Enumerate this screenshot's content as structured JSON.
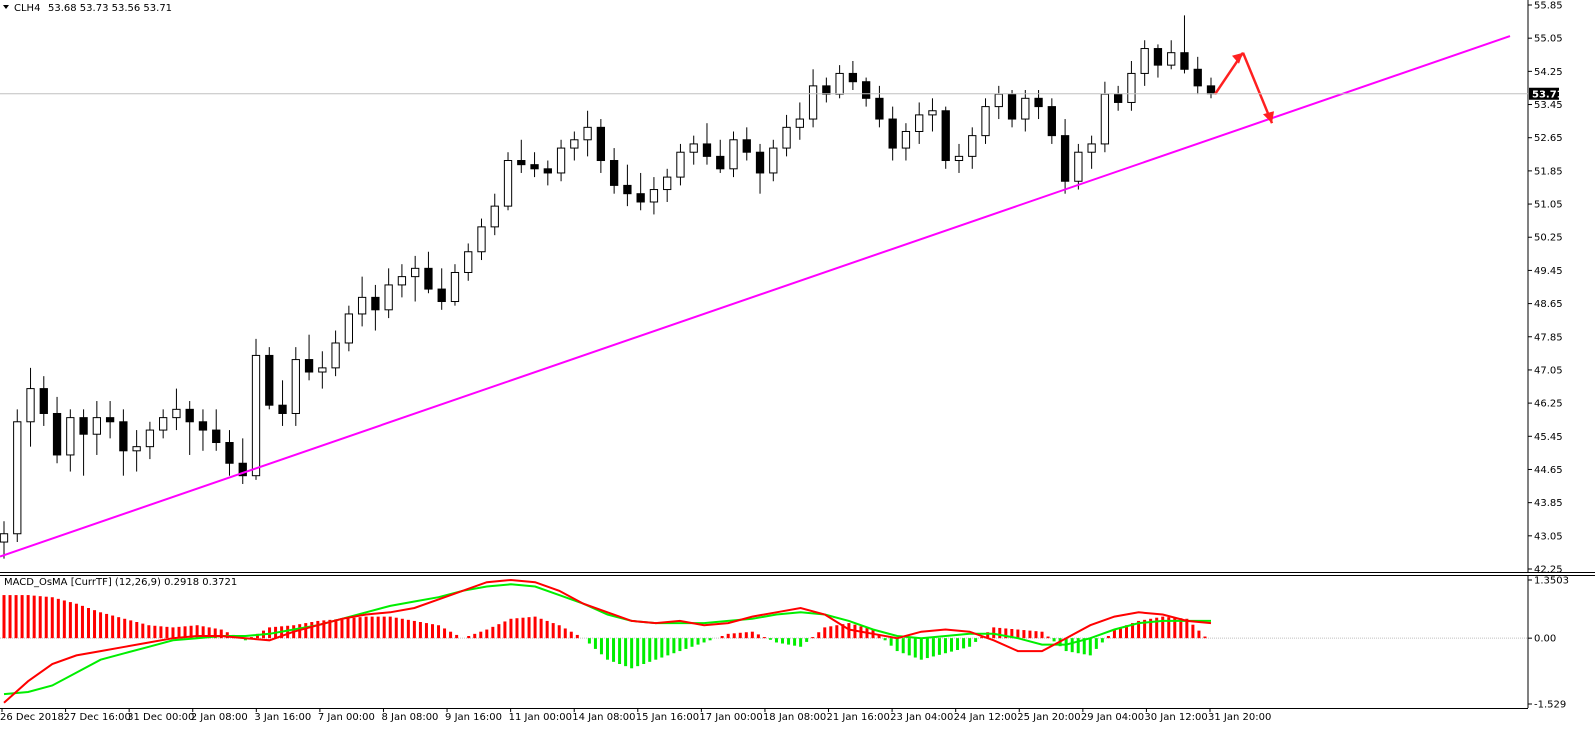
{
  "header": {
    "symbol": "CLH4",
    "ohlc": "53.68 53.73 53.56 53.71",
    "indicator": "MACD_OsMA [CurrTF] (12,26,9) 0.2918 0.3721"
  },
  "colors": {
    "background": "#ffffff",
    "candle": "#000000",
    "trendline": "#ff00ff",
    "arrows": "#ff2020",
    "macd_line": "#ff0000",
    "signal_line": "#00ee00",
    "hist_pos": "#ff0000",
    "hist_neg": "#00ee00",
    "grid_line": "#c0c0c0"
  },
  "chart_data": [
    {
      "type": "candlestick",
      "symbol": "CLH4",
      "ylim": [
        42.25,
        55.85
      ],
      "y_ticks": [
        "55.85",
        "55.05",
        "54.25",
        "53.45",
        "52.65",
        "51.85",
        "51.05",
        "50.25",
        "49.45",
        "48.65",
        "47.85",
        "47.05",
        "46.25",
        "45.45",
        "44.65",
        "43.85",
        "43.05",
        "42.25"
      ],
      "x_ticks": [
        "26 Dec 2018",
        "27 Dec 16:00",
        "31 Dec 00:00",
        "2 Jan 08:00",
        "3 Jan 16:00",
        "7 Jan 00:00",
        "8 Jan 08:00",
        "9 Jan 16:00",
        "11 Jan 00:00",
        "14 Jan 08:00",
        "15 Jan 16:00",
        "17 Jan 00:00",
        "18 Jan 08:00",
        "21 Jan 16:00",
        "23 Jan 04:00",
        "24 Jan 12:00",
        "25 Jan 20:00",
        "29 Jan 04:00",
        "30 Jan 12:00",
        "31 Jan 20:00"
      ],
      "current_price": "53.71",
      "ohlc": [
        [
          42.9,
          43.4,
          42.5,
          43.1
        ],
        [
          43.1,
          46.1,
          42.9,
          45.8
        ],
        [
          45.8,
          47.1,
          45.2,
          46.6
        ],
        [
          46.6,
          46.9,
          45.7,
          46.0
        ],
        [
          46.0,
          46.4,
          44.8,
          45.0
        ],
        [
          45.0,
          46.1,
          44.6,
          45.9
        ],
        [
          45.9,
          46.1,
          44.5,
          45.5
        ],
        [
          45.5,
          46.3,
          45.0,
          45.9
        ],
        [
          45.9,
          46.3,
          45.4,
          45.8
        ],
        [
          45.8,
          46.1,
          44.5,
          45.1
        ],
        [
          45.1,
          45.6,
          44.6,
          45.2
        ],
        [
          45.2,
          45.8,
          44.9,
          45.6
        ],
        [
          45.6,
          46.1,
          45.4,
          45.9
        ],
        [
          45.9,
          46.6,
          45.6,
          46.1
        ],
        [
          46.1,
          46.3,
          45.0,
          45.8
        ],
        [
          45.8,
          46.1,
          45.1,
          45.6
        ],
        [
          45.6,
          46.1,
          45.1,
          45.3
        ],
        [
          45.3,
          45.6,
          44.5,
          44.8
        ],
        [
          44.8,
          45.4,
          44.3,
          44.5
        ],
        [
          44.5,
          47.8,
          44.4,
          47.4
        ],
        [
          47.4,
          47.6,
          46.1,
          46.2
        ],
        [
          46.2,
          46.8,
          45.7,
          46.0
        ],
        [
          46.0,
          47.6,
          45.7,
          47.3
        ],
        [
          47.3,
          47.9,
          46.8,
          47.0
        ],
        [
          47.0,
          47.5,
          46.6,
          47.1
        ],
        [
          47.1,
          48.0,
          46.9,
          47.7
        ],
        [
          47.7,
          48.6,
          47.5,
          48.4
        ],
        [
          48.4,
          49.3,
          48.1,
          48.8
        ],
        [
          48.8,
          49.1,
          48.0,
          48.5
        ],
        [
          48.5,
          49.5,
          48.3,
          49.1
        ],
        [
          49.1,
          49.6,
          48.8,
          49.3
        ],
        [
          49.3,
          49.8,
          48.7,
          49.5
        ],
        [
          49.5,
          49.9,
          48.9,
          49.0
        ],
        [
          49.0,
          49.5,
          48.5,
          48.7
        ],
        [
          48.7,
          49.6,
          48.6,
          49.4
        ],
        [
          49.4,
          50.1,
          49.2,
          49.9
        ],
        [
          49.9,
          50.7,
          49.7,
          50.5
        ],
        [
          50.5,
          51.3,
          50.3,
          51.0
        ],
        [
          51.0,
          52.3,
          50.9,
          52.1
        ],
        [
          52.1,
          52.6,
          51.8,
          52.0
        ],
        [
          52.0,
          52.3,
          51.7,
          51.9
        ],
        [
          51.9,
          52.1,
          51.5,
          51.8
        ],
        [
          51.8,
          52.6,
          51.6,
          52.4
        ],
        [
          52.4,
          52.8,
          52.1,
          52.6
        ],
        [
          52.6,
          53.3,
          52.2,
          52.9
        ],
        [
          52.9,
          53.1,
          51.8,
          52.1
        ],
        [
          52.1,
          52.4,
          51.3,
          51.5
        ],
        [
          51.5,
          52.0,
          51.0,
          51.3
        ],
        [
          51.3,
          51.8,
          50.9,
          51.1
        ],
        [
          51.1,
          51.7,
          50.8,
          51.4
        ],
        [
          51.4,
          51.9,
          51.1,
          51.7
        ],
        [
          51.7,
          52.5,
          51.5,
          52.3
        ],
        [
          52.3,
          52.7,
          52.0,
          52.5
        ],
        [
          52.5,
          53.0,
          52.0,
          52.2
        ],
        [
          52.2,
          52.6,
          51.8,
          51.9
        ],
        [
          51.9,
          52.8,
          51.7,
          52.6
        ],
        [
          52.6,
          52.9,
          52.1,
          52.3
        ],
        [
          52.3,
          52.5,
          51.3,
          51.8
        ],
        [
          51.8,
          52.6,
          51.6,
          52.4
        ],
        [
          52.4,
          53.2,
          52.2,
          52.9
        ],
        [
          52.9,
          53.5,
          52.6,
          53.1
        ],
        [
          53.1,
          54.3,
          52.9,
          53.9
        ],
        [
          53.9,
          54.1,
          53.5,
          53.7
        ],
        [
          53.7,
          54.4,
          53.6,
          54.2
        ],
        [
          54.2,
          54.5,
          53.8,
          54.0
        ],
        [
          54.0,
          54.1,
          53.4,
          53.6
        ],
        [
          53.6,
          53.9,
          52.9,
          53.1
        ],
        [
          53.1,
          53.4,
          52.1,
          52.4
        ],
        [
          52.4,
          53.0,
          52.1,
          52.8
        ],
        [
          52.8,
          53.5,
          52.5,
          53.2
        ],
        [
          53.2,
          53.6,
          52.8,
          53.3
        ],
        [
          53.3,
          53.4,
          51.9,
          52.1
        ],
        [
          52.1,
          52.5,
          51.8,
          52.2
        ],
        [
          52.2,
          52.9,
          51.9,
          52.7
        ],
        [
          52.7,
          53.6,
          52.5,
          53.4
        ],
        [
          53.4,
          53.9,
          53.1,
          53.7
        ],
        [
          53.7,
          53.8,
          52.9,
          53.1
        ],
        [
          53.1,
          53.8,
          52.8,
          53.6
        ],
        [
          53.6,
          53.8,
          53.1,
          53.4
        ],
        [
          53.4,
          53.6,
          52.5,
          52.7
        ],
        [
          52.7,
          53.1,
          51.3,
          51.6
        ],
        [
          51.6,
          52.5,
          51.4,
          52.3
        ],
        [
          52.3,
          52.7,
          51.9,
          52.5
        ],
        [
          52.5,
          54.0,
          52.3,
          53.7
        ],
        [
          53.7,
          53.9,
          53.3,
          53.5
        ],
        [
          53.5,
          54.5,
          53.3,
          54.2
        ],
        [
          54.2,
          55.0,
          53.9,
          54.8
        ],
        [
          54.8,
          54.9,
          54.1,
          54.4
        ],
        [
          54.4,
          55.0,
          54.3,
          54.7
        ],
        [
          54.7,
          55.6,
          54.2,
          54.3
        ],
        [
          54.3,
          54.6,
          53.7,
          53.9
        ],
        [
          53.9,
          54.1,
          53.6,
          53.71
        ]
      ]
    },
    {
      "type": "macd_osma",
      "label": "MACD_OsMA [CurrTF] (12,26,9) 0.2918 0.3721",
      "ylim": [
        -1.529,
        1.3503
      ],
      "y_ticks": [
        "1.3503",
        "0.00",
        "-1.529"
      ],
      "macd": [
        -1.5,
        -1.0,
        -0.6,
        -0.4,
        -0.3,
        -0.2,
        -0.1,
        0.0,
        0.05,
        0.05,
        0.0,
        -0.05,
        0.15,
        0.3,
        0.45,
        0.55,
        0.6,
        0.7,
        0.9,
        1.1,
        1.3,
        1.35,
        1.3,
        1.1,
        0.8,
        0.6,
        0.4,
        0.35,
        0.4,
        0.3,
        0.35,
        0.5,
        0.6,
        0.7,
        0.55,
        0.2,
        0.1,
        0.0,
        0.15,
        0.2,
        0.15,
        -0.05,
        -0.3,
        -0.3,
        0.0,
        0.3,
        0.5,
        0.6,
        0.55,
        0.4,
        0.35
      ],
      "signal": [
        -1.3,
        -1.25,
        -1.1,
        -0.8,
        -0.5,
        -0.35,
        -0.2,
        -0.05,
        0.0,
        0.05,
        0.05,
        0.1,
        0.2,
        0.3,
        0.45,
        0.6,
        0.75,
        0.85,
        0.95,
        1.1,
        1.2,
        1.25,
        1.2,
        1.0,
        0.8,
        0.55,
        0.4,
        0.35,
        0.35,
        0.35,
        0.4,
        0.45,
        0.55,
        0.6,
        0.55,
        0.4,
        0.2,
        0.05,
        0.0,
        0.05,
        0.1,
        0.1,
        0.0,
        -0.15,
        -0.15,
        0.0,
        0.2,
        0.35,
        0.4,
        0.4,
        0.4
      ],
      "histogram": [
        1.0,
        1.0,
        0.95,
        0.8,
        0.6,
        0.45,
        0.3,
        0.25,
        0.3,
        0.2,
        -0.05,
        0.25,
        0.3,
        0.4,
        0.45,
        0.5,
        0.5,
        0.4,
        0.3,
        0.0,
        0.2,
        0.45,
        0.5,
        0.3,
        0.0,
        -0.5,
        -0.7,
        -0.5,
        -0.3,
        -0.1,
        0.1,
        0.15,
        -0.1,
        -0.2,
        0.25,
        0.35,
        0.2,
        -0.3,
        -0.5,
        -0.35,
        -0.2,
        0.25,
        0.2,
        0.15,
        -0.3,
        -0.4,
        0.2,
        0.4,
        0.5,
        0.45,
        -0.1
      ]
    }
  ]
}
